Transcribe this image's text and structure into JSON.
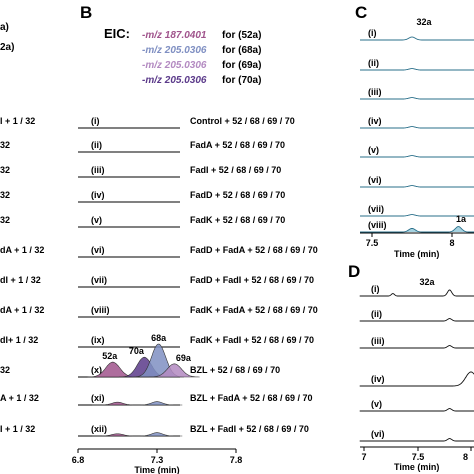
{
  "panel_A": {
    "top_fragments": [
      "a)",
      "2a)"
    ],
    "row_fragments": [
      "l + 1 / 32",
      "32",
      "32",
      "32",
      "32",
      "dA + 1 / 32",
      "dI + 1 / 32",
      "dA + 1 / 32",
      "dI+ 1 / 32",
      "32",
      "A + 1 / 32",
      "I + 1 / 32"
    ]
  },
  "panel_B": {
    "letter": "B",
    "eic_label": "EIC:",
    "eic_entries": [
      {
        "mz": "-m/z 187.0401",
        "target": "for (52a)",
        "color": "#a0548c"
      },
      {
        "mz": "-m/z 205.0306",
        "target": "for (68a)",
        "color": "#7f8fc2"
      },
      {
        "mz": "-m/z 205.0306",
        "target": "for (69a)",
        "color": "#b38ac1"
      },
      {
        "mz": "-m/z 205.0306",
        "target": "for (70a)",
        "color": "#5b3a8a"
      }
    ],
    "rows": [
      {
        "id": "(i)",
        "label": "Control + 52 / 68 / 69 / 70"
      },
      {
        "id": "(ii)",
        "label": "FadA + 52 / 68 / 69 / 70"
      },
      {
        "id": "(iii)",
        "label": "FadI + 52 / 68 / 69 / 70"
      },
      {
        "id": "(iv)",
        "label": "FadD + 52 / 68 / 69 / 70"
      },
      {
        "id": "(v)",
        "label": "FadK + 52 / 68 / 69 / 70"
      },
      {
        "id": "(vi)",
        "label": "FadD + FadA + 52 / 68 / 69 / 70"
      },
      {
        "id": "(vii)",
        "label": "FadD + FadI + 52 / 68 / 69 / 70"
      },
      {
        "id": "(viii)",
        "label": "FadK + FadA + 52 / 68 / 69 / 70"
      },
      {
        "id": "(ix)",
        "label": "FadK + FadI + 52 / 68 / 69 / 70"
      },
      {
        "id": "(x)",
        "label": "BZL + 52 / 68 / 69 / 70"
      },
      {
        "id": "(xi)",
        "label": "BZL + FadA + 52 / 68 / 69 / 70"
      },
      {
        "id": "(xii)",
        "label": "BZL + FadI + 52 / 68 / 69 / 70"
      }
    ],
    "peak_labels": [
      "52a",
      "70a",
      "68a",
      "69a"
    ],
    "axis": {
      "ticks": [
        "6.8",
        "7.3",
        "7.8"
      ],
      "xlabel": "Time (min)"
    }
  },
  "panel_C": {
    "letter": "C",
    "top_peak_label": "32a",
    "rows": [
      "(i)",
      "(ii)",
      "(iii)",
      "(iv)",
      "(v)",
      "(vi)",
      "(vii)",
      "(viii)"
    ],
    "peak_label_viii": "1a",
    "axis": {
      "ticks": [
        "7.5",
        "8"
      ],
      "xlabel": "Time (min)"
    }
  },
  "panel_D": {
    "letter": "D",
    "top_peak_label": "32a",
    "rows": [
      "(i)",
      "(ii)",
      "(iii)",
      "(iv)",
      "(v)",
      "(vi)"
    ],
    "axis": {
      "ticks": [
        "7",
        "7.5",
        "8"
      ],
      "xlabel": "Time (min)"
    }
  },
  "chart_data": [
    {
      "type": "line",
      "panel": "B",
      "xlabel": "Time (min)",
      "xlim": [
        6.8,
        7.8
      ],
      "x_ticks": [
        6.8,
        7.3,
        7.8
      ],
      "series": [
        {
          "name": "-m/z 187.0401 for (52a)",
          "color": "#a0548c"
        },
        {
          "name": "-m/z 205.0306 for (68a)",
          "color": "#7f8fc2"
        },
        {
          "name": "-m/z 205.0306 for (69a)",
          "color": "#b38ac1"
        },
        {
          "name": "-m/z 205.0306 for (70a)",
          "color": "#5b3a8a"
        }
      ],
      "peaks": {
        "(x)": [
          {
            "label": "52a",
            "rt": 7.02,
            "height": 0.45,
            "color": "#a0548c"
          },
          {
            "label": "70a",
            "rt": 7.22,
            "height": 0.6,
            "color": "#5b3a8a"
          },
          {
            "label": "68a",
            "rt": 7.31,
            "height": 1.0,
            "color": "#7f8fc2"
          },
          {
            "label": "69a",
            "rt": 7.41,
            "height": 0.4,
            "color": "#b38ac1"
          }
        ],
        "(xi)": [
          {
            "rt": 7.05,
            "height": 0.1,
            "color": "#a0548c"
          },
          {
            "rt": 7.3,
            "height": 0.12,
            "color": "#7f8fc2"
          }
        ],
        "(xii)": [
          {
            "rt": 7.05,
            "height": 0.08,
            "color": "#a0548c"
          },
          {
            "rt": 7.3,
            "height": 0.12,
            "color": "#7f8fc2"
          }
        ]
      }
    },
    {
      "type": "line",
      "panel": "C",
      "xlabel": "Time (min)",
      "x_ticks": [
        7.5,
        8
      ],
      "peaks": {
        "(i)": [
          {
            "label": "32a",
            "rt": 7.75,
            "height": 0.25
          }
        ],
        "(viii)": [
          {
            "rt": 7.75,
            "height": 0.3
          },
          {
            "label": "1a",
            "rt": 8.04,
            "height": 0.45
          }
        ]
      }
    },
    {
      "type": "line",
      "panel": "D",
      "xlabel": "Time (min)",
      "x_ticks": [
        7,
        7.5,
        8
      ],
      "peaks": {
        "(i)": [
          {
            "label": "32a",
            "rt": 7.8,
            "height": 0.3
          }
        ],
        "(iv)": [
          {
            "rt": 8.0,
            "height": 0.7
          }
        ]
      }
    }
  ]
}
